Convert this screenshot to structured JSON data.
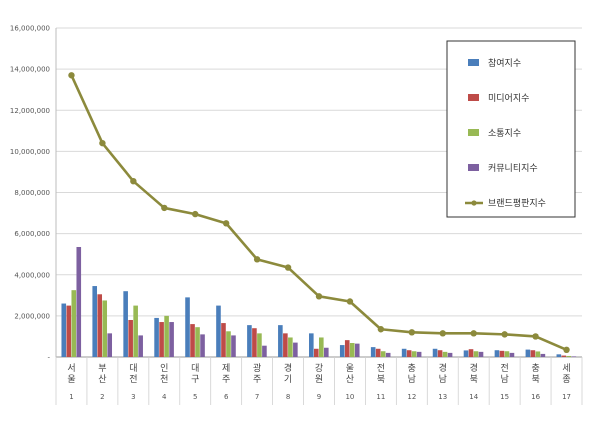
{
  "chart_data": {
    "type": "bar",
    "categories": [
      "서울",
      "부산",
      "대전",
      "인천",
      "대구",
      "제주",
      "광주",
      "경기",
      "강원",
      "울산",
      "전북",
      "충남",
      "경남",
      "경북",
      "전남",
      "충북",
      "세종"
    ],
    "category_indices": [
      "1",
      "2",
      "3",
      "4",
      "5",
      "6",
      "7",
      "8",
      "9",
      "10",
      "11",
      "12",
      "13",
      "14",
      "15",
      "16",
      "17"
    ],
    "ylim": [
      0,
      16000000
    ],
    "yticks": [
      "-",
      "2,000,000",
      "4,000,000",
      "6,000,000",
      "8,000,000",
      "10,000,000",
      "12,000,000",
      "14,000,000",
      "16,000,000"
    ],
    "grid": true,
    "legend_position": "top-right",
    "series": [
      {
        "name": "참여지수",
        "type": "bar",
        "color": "#4a7ebb",
        "values": [
          2600000,
          3450000,
          3200000,
          1900000,
          2900000,
          2500000,
          1550000,
          1550000,
          1150000,
          580000,
          480000,
          400000,
          400000,
          320000,
          330000,
          360000,
          130000
        ]
      },
      {
        "name": "미디어지수",
        "type": "bar",
        "color": "#be4b48",
        "values": [
          2500000,
          3050000,
          1800000,
          1700000,
          1600000,
          1650000,
          1400000,
          1150000,
          400000,
          820000,
          400000,
          330000,
          330000,
          380000,
          300000,
          330000,
          70000
        ]
      },
      {
        "name": "소통지수",
        "type": "bar",
        "color": "#98b954",
        "values": [
          3250000,
          2750000,
          2500000,
          2000000,
          1450000,
          1250000,
          1150000,
          950000,
          950000,
          680000,
          280000,
          280000,
          250000,
          280000,
          280000,
          270000,
          50000
        ]
      },
      {
        "name": "커뮤니티지수",
        "type": "bar",
        "color": "#7d60a0",
        "values": [
          5350000,
          1150000,
          1050000,
          1700000,
          1100000,
          1050000,
          550000,
          700000,
          450000,
          650000,
          200000,
          250000,
          200000,
          250000,
          200000,
          150000,
          30000
        ]
      },
      {
        "name": "브랜드평판지수",
        "type": "line",
        "color": "#8c8a3c",
        "values": [
          13700000,
          10400000,
          8550000,
          7250000,
          6950000,
          6500000,
          4750000,
          4350000,
          2950000,
          2700000,
          1350000,
          1200000,
          1150000,
          1150000,
          1100000,
          1000000,
          350000
        ]
      }
    ]
  }
}
